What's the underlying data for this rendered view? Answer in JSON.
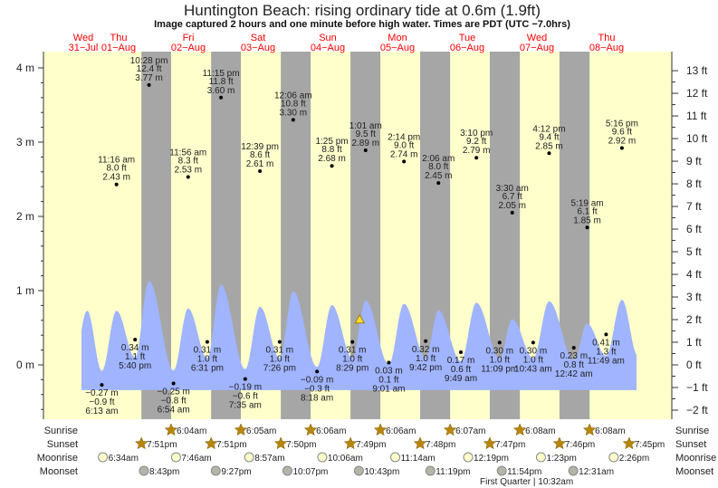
{
  "title": "Huntington Beach: rising  ordinary tide at 0.6m (1.9ft)",
  "subtitle": "Image captured 2 hours and one minute before high water. Times are PDT (UTC −7.0hrs)",
  "colors": {
    "day": "#ffffcc",
    "night": "#a6a6a6",
    "water": "#a0b4ff",
    "day_label": "#ff0000",
    "sun": "#b8860b",
    "moonrise": "#ffffcc",
    "moonset": "#b4b4a8"
  },
  "chart_data": {
    "type": "area",
    "title": "Huntington Beach: rising  ordinary tide at 0.6m (1.9ft)",
    "ylabel_left": "m",
    "ylabel_right": "ft",
    "ylim_m": [
      -0.6,
      4.2
    ],
    "left_ticks": [
      "4 m",
      "3 m",
      "2 m",
      "1 m",
      "0 m"
    ],
    "left_tick_values": [
      4,
      3,
      2,
      1,
      0
    ],
    "right_ticks": [
      "13 ft",
      "12 ft",
      "11 ft",
      "10 ft",
      "9 ft",
      "8 ft",
      "7 ft",
      "6 ft",
      "5 ft",
      "4 ft",
      "3 ft",
      "2 ft",
      "1 ft",
      "0 ft",
      "−1 ft",
      "−2 ft"
    ],
    "right_tick_values": [
      13,
      12,
      11,
      10,
      9,
      8,
      7,
      6,
      5,
      4,
      3,
      2,
      1,
      0,
      -1,
      -2
    ],
    "days": [
      {
        "dow": "Wed",
        "date": "31−Jul"
      },
      {
        "dow": "Thu",
        "date": "01−Aug"
      },
      {
        "dow": "Fri",
        "date": "02−Aug"
      },
      {
        "dow": "Sat",
        "date": "03−Aug"
      },
      {
        "dow": "Sun",
        "date": "04−Aug"
      },
      {
        "dow": "Mon",
        "date": "05−Aug"
      },
      {
        "dow": "Tue",
        "date": "06−Aug"
      },
      {
        "dow": "Wed",
        "date": "07−Aug"
      },
      {
        "dow": "Thu",
        "date": "08−Aug"
      }
    ],
    "events": [
      {
        "type": "low",
        "day": 1,
        "time": "6:13 am",
        "m": -0.27,
        "m_label": "−0.27 m",
        "ft_label": "−0.9 ft"
      },
      {
        "type": "high",
        "day": 1,
        "time": "11:16 am",
        "m": 2.43,
        "m_label": "2.43 m",
        "ft_label": "8.0 ft"
      },
      {
        "type": "low",
        "day": 1,
        "time": "5:40 pm",
        "m": 0.34,
        "m_label": "0.34 m",
        "ft_label": "1.1 ft"
      },
      {
        "type": "high",
        "day": 1,
        "time": "10:28 pm",
        "m": 3.77,
        "m_label": "3.77 m",
        "ft_label": "12.4 ft"
      },
      {
        "type": "low",
        "day": 2,
        "time": "6:54 am",
        "m": -0.25,
        "m_label": "−0.25 m",
        "ft_label": "−0.8 ft"
      },
      {
        "type": "high",
        "day": 2,
        "time": "11:56 am",
        "m": 2.53,
        "m_label": "2.53 m",
        "ft_label": "8.3 ft"
      },
      {
        "type": "low",
        "day": 2,
        "time": "6:31 pm",
        "m": 0.31,
        "m_label": "0.31 m",
        "ft_label": "1.0 ft"
      },
      {
        "type": "high",
        "day": 2,
        "time": "11:15 pm",
        "m": 3.6,
        "m_label": "3.60 m",
        "ft_label": "11.8 ft"
      },
      {
        "type": "low",
        "day": 3,
        "time": "7:35 am",
        "m": -0.19,
        "m_label": "−0.19 m",
        "ft_label": "−0.6 ft"
      },
      {
        "type": "high",
        "day": 3,
        "time": "12:39 pm",
        "m": 2.61,
        "m_label": "2.61 m",
        "ft_label": "8.6 ft"
      },
      {
        "type": "low",
        "day": 3,
        "time": "7:26 pm",
        "m": 0.31,
        "m_label": "0.31 m",
        "ft_label": "1.0 ft"
      },
      {
        "type": "high",
        "day": 4,
        "time": "12:06 am",
        "m": 3.3,
        "m_label": "3.30 m",
        "ft_label": "10.8 ft"
      },
      {
        "type": "low",
        "day": 4,
        "time": "8:18 am",
        "m": -0.09,
        "m_label": "−0.09 m",
        "ft_label": "−0.3 ft"
      },
      {
        "type": "high",
        "day": 4,
        "time": "1:25 pm",
        "m": 2.68,
        "m_label": "2.68 m",
        "ft_label": "8.8 ft"
      },
      {
        "type": "low",
        "day": 4,
        "time": "8:29 pm",
        "m": 0.31,
        "m_label": "0.31 m",
        "ft_label": "1.0 ft"
      },
      {
        "type": "high",
        "day": 5,
        "time": "1:01 am",
        "m": 2.89,
        "m_label": "2.89 m",
        "ft_label": "9.5 ft"
      },
      {
        "type": "low",
        "day": 5,
        "time": "9:01 am",
        "m": 0.03,
        "m_label": "0.03 m",
        "ft_label": "0.1 ft"
      },
      {
        "type": "high",
        "day": 5,
        "time": "2:14 pm",
        "m": 2.74,
        "m_label": "2.74 m",
        "ft_label": "9.0 ft"
      },
      {
        "type": "low",
        "day": 5,
        "time": "9:42 pm",
        "m": 0.32,
        "m_label": "0.32 m",
        "ft_label": "1.0 ft"
      },
      {
        "type": "high",
        "day": 6,
        "time": "2:06 am",
        "m": 2.45,
        "m_label": "2.45 m",
        "ft_label": "8.0 ft"
      },
      {
        "type": "low",
        "day": 6,
        "time": "9:49 am",
        "m": 0.17,
        "m_label": "0.17 m",
        "ft_label": "0.6 ft"
      },
      {
        "type": "high",
        "day": 6,
        "time": "3:10 pm",
        "m": 2.79,
        "m_label": "2.79 m",
        "ft_label": "9.2 ft"
      },
      {
        "type": "low",
        "day": 6,
        "time": "11:09 pm",
        "m": 0.3,
        "m_label": "0.30 m",
        "ft_label": "1.0 ft"
      },
      {
        "type": "high",
        "day": 7,
        "time": "3:30 am",
        "m": 2.05,
        "m_label": "2.05 m",
        "ft_label": "6.7 ft"
      },
      {
        "type": "low",
        "day": 7,
        "time": "10:43 am",
        "m": 0.3,
        "m_label": "0.30 m",
        "ft_label": "1.0 ft"
      },
      {
        "type": "high",
        "day": 7,
        "time": "4:12 pm",
        "m": 2.85,
        "m_label": "2.85 m",
        "ft_label": "9.4 ft"
      },
      {
        "type": "low",
        "day": 8,
        "time": "12:42 am",
        "m": 0.23,
        "m_label": "0.23 m",
        "ft_label": "0.8 ft"
      },
      {
        "type": "high",
        "day": 8,
        "time": "5:19 am",
        "m": 1.85,
        "m_label": "1.85 m",
        "ft_label": "6.1 ft"
      },
      {
        "type": "low",
        "day": 8,
        "time": "11:49 am",
        "m": 0.41,
        "m_label": "0.41 m",
        "ft_label": "1.3 ft"
      },
      {
        "type": "high",
        "day": 8,
        "time": "5:16 pm",
        "m": 2.92,
        "m_label": "2.92 m",
        "ft_label": "9.6 ft"
      }
    ],
    "current": {
      "day": 4,
      "time": "10:59 pm",
      "m": 0.6,
      "label": "rising"
    }
  },
  "rows": {
    "labels": {
      "sunrise": "Sunrise",
      "sunset": "Sunset",
      "moonrise": "Moonrise",
      "moonset": "Moonset"
    },
    "sunrise": [
      {
        "day": 2,
        "time": "6:04am"
      },
      {
        "day": 3,
        "time": "6:05am"
      },
      {
        "day": 4,
        "time": "6:06am"
      },
      {
        "day": 5,
        "time": "6:06am"
      },
      {
        "day": 6,
        "time": "6:07am"
      },
      {
        "day": 7,
        "time": "6:08am"
      },
      {
        "day": 8,
        "time": "6:08am"
      }
    ],
    "sunset": [
      {
        "day": 1,
        "time": "7:51pm"
      },
      {
        "day": 2,
        "time": "7:51pm"
      },
      {
        "day": 3,
        "time": "7:50pm"
      },
      {
        "day": 4,
        "time": "7:49pm"
      },
      {
        "day": 5,
        "time": "7:48pm"
      },
      {
        "day": 6,
        "time": "7:47pm"
      },
      {
        "day": 7,
        "time": "7:46pm"
      },
      {
        "day": 8,
        "time": "7:45pm"
      }
    ],
    "moonrise": [
      {
        "day": 1,
        "time": "6:34am"
      },
      {
        "day": 2,
        "time": "7:46am"
      },
      {
        "day": 3,
        "time": "8:57am"
      },
      {
        "day": 4,
        "time": "10:06am"
      },
      {
        "day": 5,
        "time": "11:14am"
      },
      {
        "day": 6,
        "time": "12:19pm"
      },
      {
        "day": 7,
        "time": "1:23pm"
      },
      {
        "day": 8,
        "time": "2:26pm"
      }
    ],
    "moonset": [
      {
        "day": 1,
        "time": "8:43pm"
      },
      {
        "day": 2,
        "time": "9:27pm"
      },
      {
        "day": 3,
        "time": "10:07pm"
      },
      {
        "day": 4,
        "time": "10:43pm"
      },
      {
        "day": 5,
        "time": "11:19pm"
      },
      {
        "day": 6,
        "time": "11:54pm"
      },
      {
        "day": 8,
        "time": "12:31am"
      }
    ],
    "moon_phase": "First Quarter | 10:32am"
  }
}
